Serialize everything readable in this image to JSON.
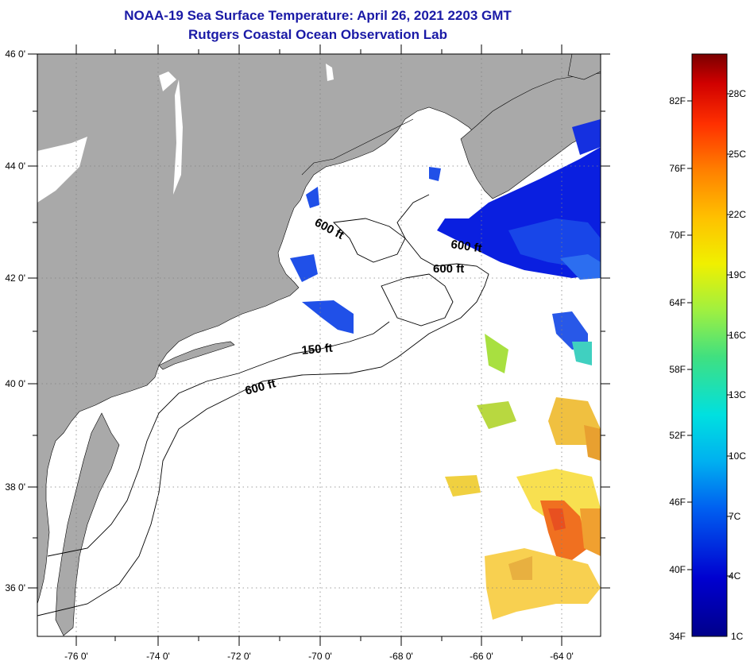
{
  "title": {
    "line1": "NOAA-19 Sea Surface Temperature:  April 26, 2021 2203 GMT",
    "line2": "Rutgers Coastal Ocean Observation Lab"
  },
  "map": {
    "longitude_labels": [
      "-76 0'",
      "-74 0'",
      "-72 0'",
      "-70 0'",
      "-68 0'",
      "-66 0'",
      "-64 0'"
    ],
    "latitude_labels": [
      "46 0'",
      "44 0'",
      "42 0'",
      "40 0'",
      "38 0'",
      "36 0'"
    ],
    "contour_labels": [
      "600 ft",
      "600 ft",
      "600 ft",
      "150 ft",
      "600 ft"
    ],
    "colors": {
      "land": "#a9a9a9",
      "ocean": "#ffffff",
      "grid": "#808080"
    }
  },
  "colorbar": {
    "fahrenheit_labels": [
      "82F",
      "76F",
      "70F",
      "64F",
      "58F",
      "52F",
      "46F",
      "40F",
      "34F"
    ],
    "celsius_labels": [
      "28C",
      "25C",
      "22C",
      "19C",
      "16C",
      "13C",
      "10C",
      "7C",
      "4C",
      "1C"
    ],
    "colors": [
      "#7a0000",
      "#d00000",
      "#ff3000",
      "#ff8000",
      "#ffc000",
      "#f0f000",
      "#90f040",
      "#30e0a0",
      "#00d0f0",
      "#0090f0",
      "#0040e0",
      "#0000b0",
      "#00008a"
    ]
  }
}
